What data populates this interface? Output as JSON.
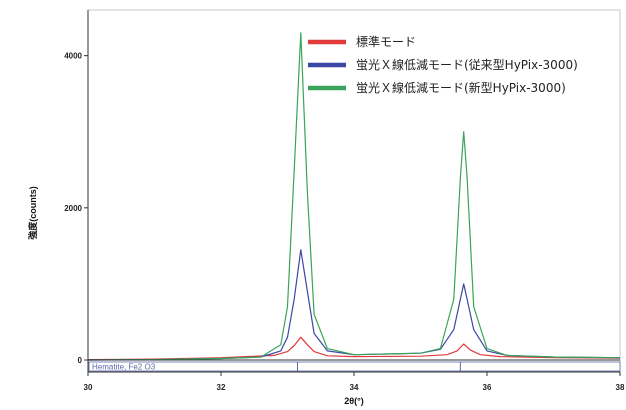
{
  "chart_data": {
    "type": "line",
    "xlabel": "2θ(°)",
    "ylabel": "強度(counts)",
    "xlim": [
      30,
      38
    ],
    "ylim": [
      0,
      4600
    ],
    "x_ticks": [
      30,
      32,
      34,
      36,
      38
    ],
    "x_tick_labels": [
      "30",
      "32",
      "34",
      "36",
      "38"
    ],
    "y_ticks": [
      0,
      2000,
      4000
    ],
    "y_tick_labels": [
      "0",
      "2000",
      "4000"
    ],
    "grid": false,
    "legend_position": "top-right",
    "series": [
      {
        "name": "標準モード",
        "color": "#e03a3a",
        "points": [
          [
            30.0,
            5
          ],
          [
            31.0,
            12
          ],
          [
            32.0,
            30
          ],
          [
            32.8,
            60
          ],
          [
            33.0,
            110
          ],
          [
            33.1,
            190
          ],
          [
            33.2,
            300
          ],
          [
            33.3,
            200
          ],
          [
            33.4,
            110
          ],
          [
            33.6,
            55
          ],
          [
            34.0,
            45
          ],
          [
            35.0,
            50
          ],
          [
            35.4,
            70
          ],
          [
            35.55,
            120
          ],
          [
            35.65,
            210
          ],
          [
            35.75,
            130
          ],
          [
            35.9,
            70
          ],
          [
            36.2,
            45
          ],
          [
            37.0,
            30
          ],
          [
            38.0,
            25
          ]
        ]
      },
      {
        "name": "蛍光Ｘ線低減モード(従来型HyPix-3000)",
        "color": "#3b47a5",
        "points": [
          [
            30.0,
            0
          ],
          [
            31.0,
            5
          ],
          [
            32.0,
            20
          ],
          [
            32.6,
            40
          ],
          [
            32.9,
            120
          ],
          [
            33.0,
            300
          ],
          [
            33.1,
            800
          ],
          [
            33.2,
            1450
          ],
          [
            33.3,
            900
          ],
          [
            33.4,
            350
          ],
          [
            33.6,
            120
          ],
          [
            34.0,
            70
          ],
          [
            35.0,
            90
          ],
          [
            35.3,
            140
          ],
          [
            35.5,
            400
          ],
          [
            35.6,
            800
          ],
          [
            35.65,
            1000
          ],
          [
            35.7,
            800
          ],
          [
            35.8,
            400
          ],
          [
            36.0,
            120
          ],
          [
            36.3,
            60
          ],
          [
            37.0,
            40
          ],
          [
            38.0,
            30
          ]
        ]
      },
      {
        "name": "蛍光Ｘ線低減モード(新型HyPix-3000)",
        "color": "#3aa45a",
        "points": [
          [
            30.0,
            0
          ],
          [
            31.0,
            5
          ],
          [
            32.0,
            20
          ],
          [
            32.6,
            40
          ],
          [
            32.9,
            200
          ],
          [
            33.0,
            700
          ],
          [
            33.1,
            2500
          ],
          [
            33.2,
            4300
          ],
          [
            33.3,
            2200
          ],
          [
            33.4,
            600
          ],
          [
            33.6,
            150
          ],
          [
            34.0,
            70
          ],
          [
            35.0,
            90
          ],
          [
            35.3,
            150
          ],
          [
            35.5,
            800
          ],
          [
            35.6,
            2400
          ],
          [
            35.65,
            3000
          ],
          [
            35.7,
            2400
          ],
          [
            35.8,
            700
          ],
          [
            36.0,
            150
          ],
          [
            36.3,
            60
          ],
          [
            37.0,
            40
          ],
          [
            38.0,
            30
          ]
        ]
      }
    ],
    "reference": {
      "label": "Hematite, Fe2 O3",
      "color": "#5a6aa8",
      "lines": [
        33.15,
        35.6
      ]
    }
  }
}
